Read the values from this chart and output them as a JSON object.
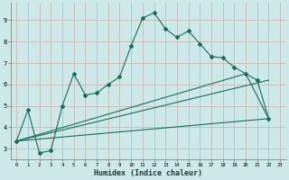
{
  "xlabel": "Humidex (Indice chaleur)",
  "bg_color": "#cce8e8",
  "grid_color": "#c8b8b8",
  "line_color": "#1a6b5a",
  "xlim": [
    -0.5,
    23.5
  ],
  "ylim": [
    2.5,
    9.8
  ],
  "xticks": [
    0,
    1,
    2,
    3,
    4,
    5,
    6,
    7,
    8,
    9,
    10,
    11,
    12,
    13,
    14,
    15,
    16,
    17,
    18,
    19,
    20,
    21,
    22,
    23
  ],
  "yticks": [
    3,
    4,
    5,
    6,
    7,
    8,
    9
  ],
  "series1_x": [
    0,
    1,
    2,
    3,
    4,
    5,
    6,
    7,
    8,
    9,
    10,
    11,
    12,
    13,
    14,
    15,
    16,
    17,
    18,
    19,
    20,
    21,
    22
  ],
  "series1_y": [
    3.35,
    4.8,
    2.8,
    2.9,
    5.0,
    6.5,
    5.5,
    5.6,
    6.0,
    6.35,
    7.8,
    9.1,
    9.35,
    8.6,
    8.2,
    8.5,
    7.9,
    7.3,
    7.25,
    6.8,
    6.5,
    6.2,
    4.4
  ],
  "series2_x": [
    0,
    22
  ],
  "series2_y": [
    3.35,
    4.4
  ],
  "series3_x": [
    0,
    20,
    22
  ],
  "series3_y": [
    3.35,
    6.5,
    4.4
  ],
  "series4_x": [
    0,
    22
  ],
  "series4_y": [
    3.35,
    6.2
  ]
}
